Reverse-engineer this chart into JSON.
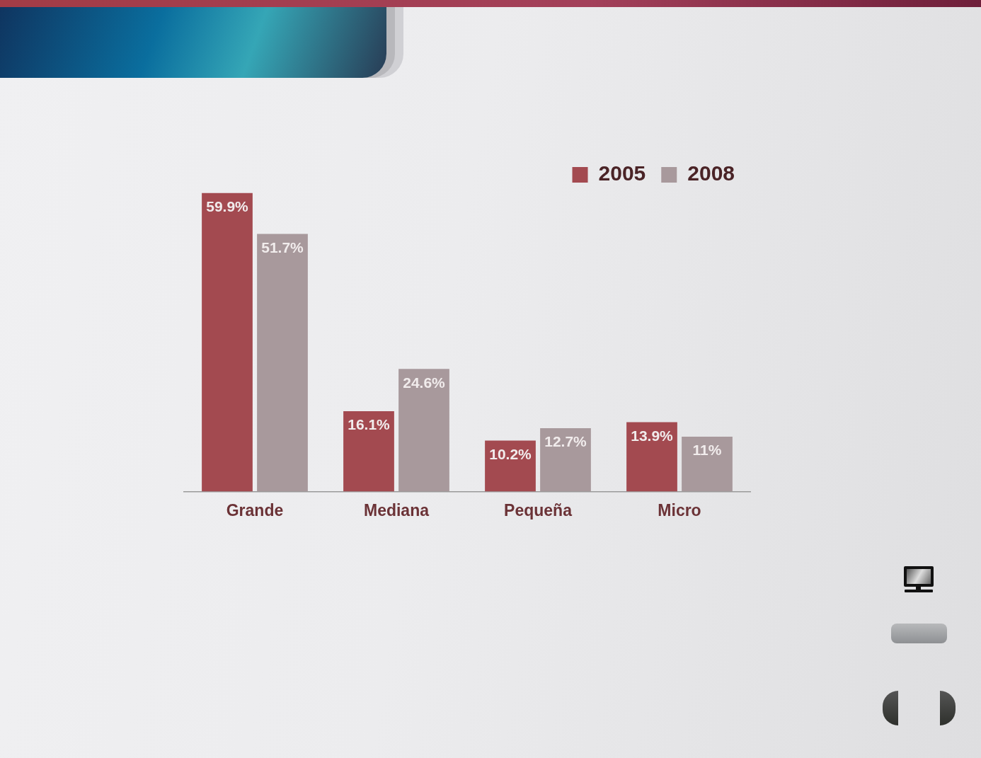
{
  "chart_data": {
    "type": "bar",
    "categories": [
      "Grande",
      "Mediana",
      "Pequeña",
      "Micro"
    ],
    "series": [
      {
        "name": "2005",
        "color": "#a34a50",
        "values": [
          59.9,
          16.1,
          10.2,
          13.9
        ],
        "value_labels": [
          "59.9%",
          "16.1%",
          "10.2%",
          "13.9%"
        ]
      },
      {
        "name": "2008",
        "color": "#a8999c",
        "values": [
          51.7,
          24.6,
          12.7,
          11
        ],
        "value_labels": [
          "51.7%",
          "24.6%",
          "12.7%",
          "11%"
        ]
      }
    ],
    "legend": "top right",
    "grid": false,
    "tick_labels": "x"
  }
}
